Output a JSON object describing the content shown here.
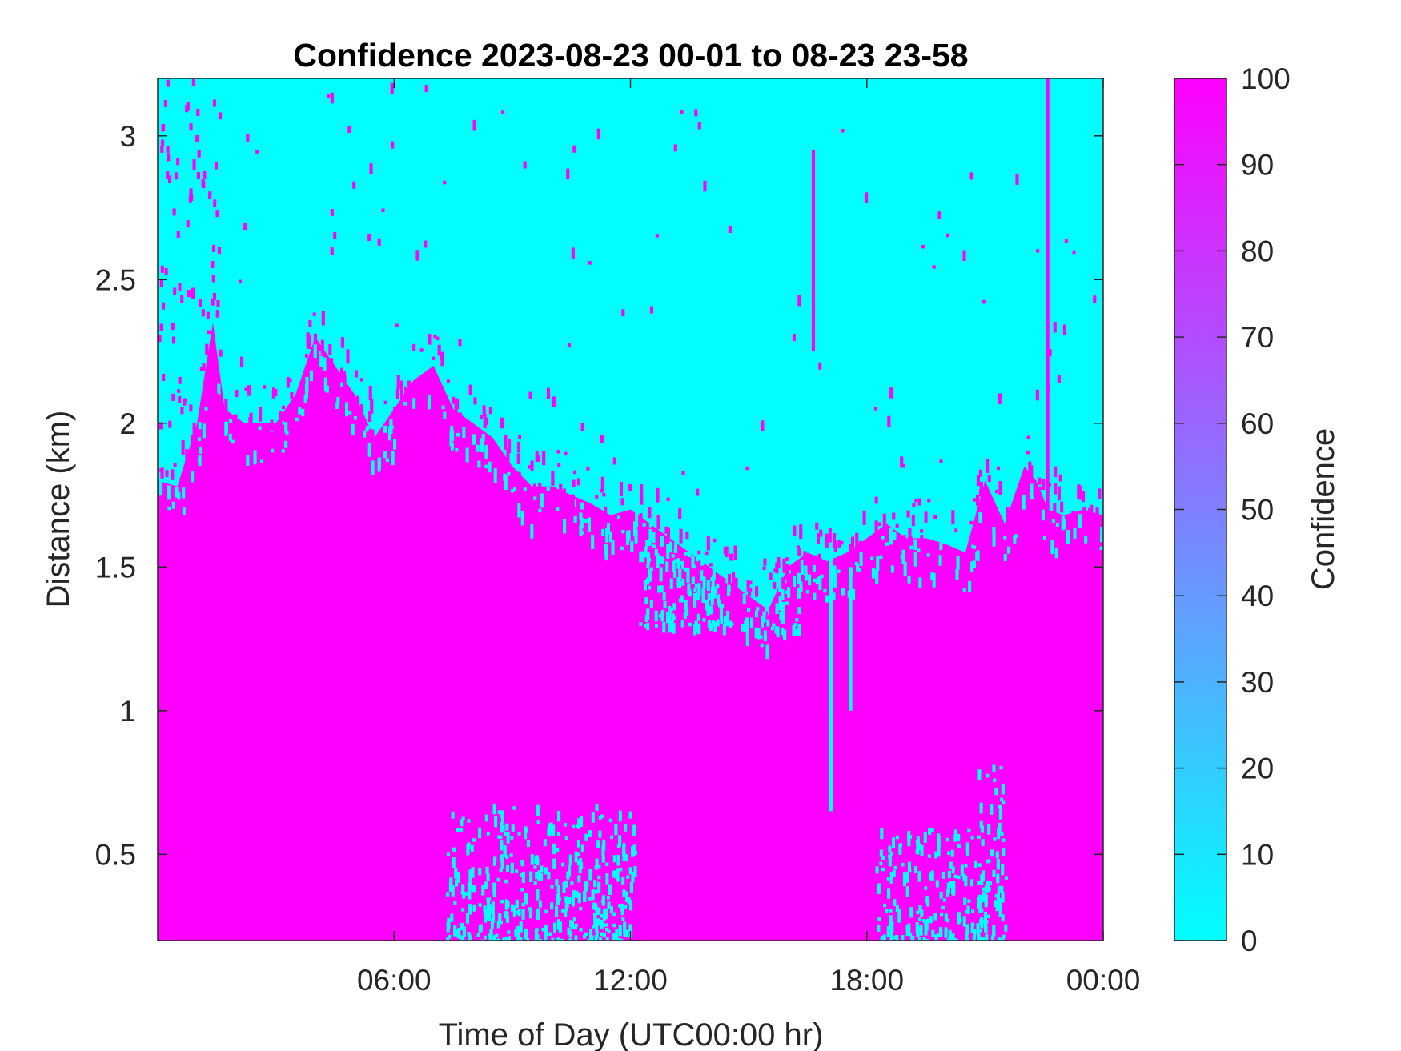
{
  "chart_data": {
    "type": "heatmap",
    "title": "Confidence 2023-08-23 00-01 to 08-23 23-58",
    "xlabel": "Time of Day (UTC00:00 hr)",
    "ylabel": "Distance (km)",
    "colorbar_label": "Confidence",
    "xlim": [
      0,
      24
    ],
    "ylim": [
      0.2,
      3.2
    ],
    "x_ticks": [
      {
        "value": 6,
        "label": "06:00"
      },
      {
        "value": 12,
        "label": "12:00"
      },
      {
        "value": 18,
        "label": "18:00"
      },
      {
        "value": 24,
        "label": "00:00"
      }
    ],
    "y_ticks": [
      {
        "value": 0.5,
        "label": "0.5"
      },
      {
        "value": 1.0,
        "label": "1"
      },
      {
        "value": 1.5,
        "label": "1.5"
      },
      {
        "value": 2.0,
        "label": "2"
      },
      {
        "value": 2.5,
        "label": "2.5"
      },
      {
        "value": 3.0,
        "label": "3"
      }
    ],
    "colorbar": {
      "range": [
        0,
        100
      ],
      "ticks": [
        0,
        10,
        20,
        30,
        40,
        50,
        60,
        70,
        80,
        90,
        100
      ],
      "colormap": [
        "#00ffff",
        "#ff00ff"
      ]
    },
    "values_high": 100,
    "values_low": 0,
    "high_confidence_top_km": {
      "x": [
        0,
        0.5,
        1,
        1.4,
        1.7,
        2.2,
        3,
        3.5,
        4,
        4.5,
        5,
        5.5,
        6,
        6.5,
        7,
        7.5,
        8,
        8.5,
        9,
        9.5,
        10,
        10.5,
        11,
        11.5,
        12,
        12.5,
        13,
        13.5,
        14,
        14.5,
        15,
        15.5,
        16,
        16.5,
        17,
        17.5,
        18,
        18.5,
        19,
        19.5,
        20,
        20.5,
        21,
        21.5,
        22,
        22.3,
        22.6,
        23,
        23.5,
        24
      ],
      "y": [
        1.8,
        1.78,
        2.0,
        2.35,
        2.05,
        2.0,
        2.0,
        2.1,
        2.3,
        2.2,
        2.1,
        1.95,
        2.05,
        2.15,
        2.2,
        2.05,
        2.0,
        1.95,
        1.85,
        1.78,
        1.78,
        1.75,
        1.72,
        1.68,
        1.7,
        1.65,
        1.6,
        1.55,
        1.5,
        1.45,
        1.4,
        1.35,
        1.5,
        1.55,
        1.52,
        1.55,
        1.6,
        1.65,
        1.6,
        1.6,
        1.58,
        1.55,
        1.8,
        1.65,
        1.85,
        1.8,
        1.7,
        1.68,
        1.7,
        1.68
      ]
    },
    "low_confidence_patches": [
      {
        "x": [
          7.3,
          12.1
        ],
        "y": [
          0.2,
          0.68
        ]
      },
      {
        "x": [
          18.2,
          21.0
        ],
        "y": [
          0.2,
          0.6
        ]
      },
      {
        "x": [
          20.8,
          21.5
        ],
        "y": [
          0.2,
          0.82
        ]
      },
      {
        "x": [
          12.2,
          14.5
        ],
        "y": [
          1.3,
          1.72
        ]
      },
      {
        "x": [
          14.8,
          16.3
        ],
        "y": [
          1.28,
          1.5
        ]
      }
    ],
    "vertical_streaks": [
      {
        "x": 22.55,
        "y": [
          1.7,
          3.2
        ],
        "value": 100
      },
      {
        "x": 16.6,
        "y": [
          2.25,
          2.95
        ],
        "value": 100
      },
      {
        "x": 17.05,
        "y": [
          0.65,
          1.55
        ],
        "value": 0
      },
      {
        "x": 17.55,
        "y": [
          1.0,
          1.5
        ],
        "value": 0
      }
    ]
  }
}
